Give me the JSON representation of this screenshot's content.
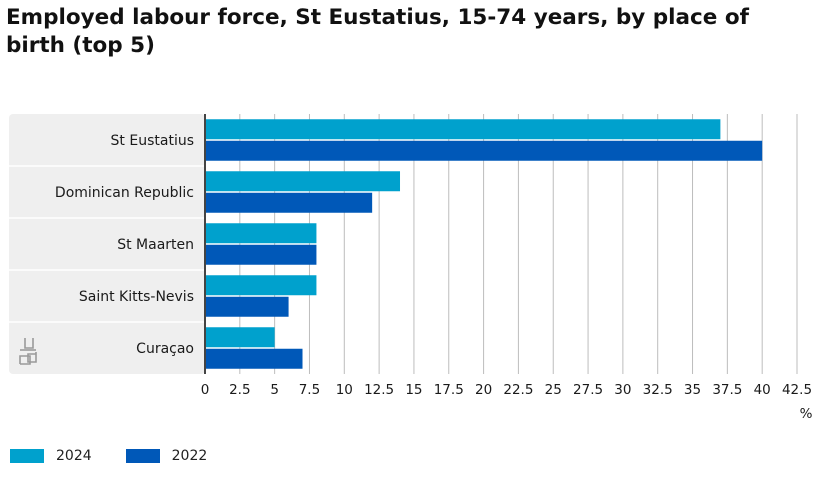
{
  "title": "Employed labour force, St Eustatius, 15-74 years, by place of birth (top 5)",
  "colors": {
    "2024": "#00a1cd",
    "2022": "#0058b8",
    "panel": "#efefef",
    "grid": "#bdbdbd",
    "axis": "#444444"
  },
  "logo_icon": "cbs-logo-icon",
  "chart_data": {
    "type": "bar",
    "orientation": "horizontal",
    "title": "Employed labour force, St Eustatius, 15-74 years, by place of birth (top 5)",
    "categories": [
      "St Eustatius",
      "Dominican Republic",
      "St Maarten",
      "Saint Kitts-Nevis",
      "Curaçao"
    ],
    "series": [
      {
        "name": "2024",
        "values": [
          37,
          14,
          8,
          8,
          5
        ]
      },
      {
        "name": "2022",
        "values": [
          40,
          12,
          8,
          6,
          7
        ]
      }
    ],
    "xlim": [
      0,
      42.5
    ],
    "xticks": [
      "0",
      "2.5",
      "5",
      "7.5",
      "10",
      "12.5",
      "15",
      "17.5",
      "20",
      "22.5",
      "25",
      "27.5",
      "30",
      "32.5",
      "35",
      "37.5",
      "40",
      "42.5"
    ],
    "xunit": "%",
    "grid": true,
    "legend_position": "bottom-left"
  }
}
